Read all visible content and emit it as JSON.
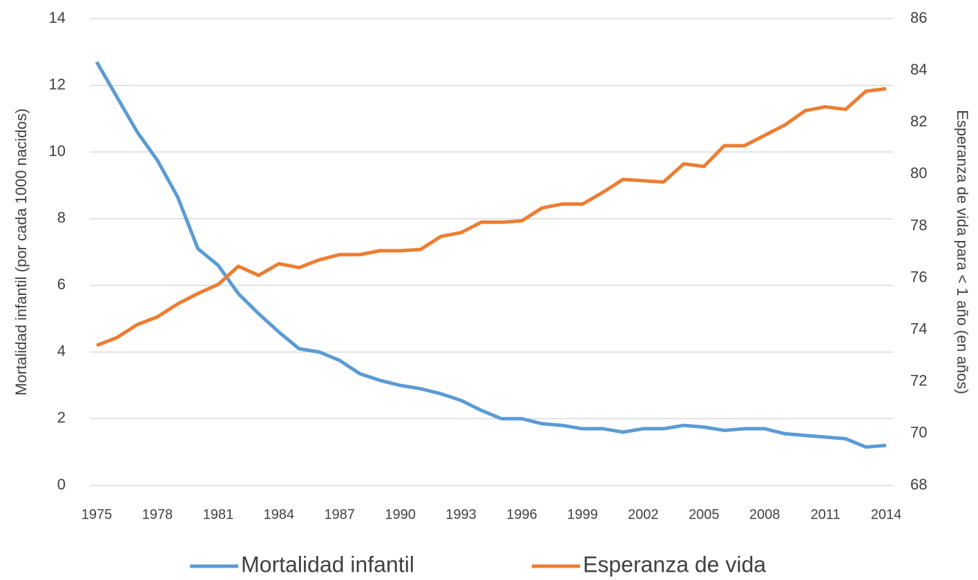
{
  "chart_data": {
    "type": "line",
    "x": [
      1975,
      1976,
      1977,
      1978,
      1979,
      1980,
      1981,
      1982,
      1983,
      1984,
      1985,
      1986,
      1987,
      1988,
      1989,
      1990,
      1991,
      1992,
      1993,
      1994,
      1995,
      1996,
      1997,
      1998,
      1999,
      2000,
      2001,
      2002,
      2003,
      2004,
      2005,
      2006,
      2007,
      2008,
      2009,
      2010,
      2011,
      2012,
      2013,
      2014
    ],
    "xlim": [
      1975,
      2014
    ],
    "xticks": [
      1975,
      1978,
      1981,
      1984,
      1987,
      1990,
      1993,
      1996,
      1999,
      2002,
      2005,
      2008,
      2011,
      2014
    ],
    "ylabel": "Mortalidad infantil (por cada 1000 nacidos)",
    "y2label": "Esperanza de vida para < 1 año (en años)",
    "ylim": [
      0,
      14
    ],
    "yticks": [
      0,
      2,
      4,
      6,
      8,
      10,
      12,
      14
    ],
    "y2lim": [
      68,
      86
    ],
    "y2ticks": [
      68,
      70,
      72,
      74,
      76,
      78,
      80,
      82,
      84,
      86
    ],
    "grid": true,
    "legend": "bottom",
    "series": [
      {
        "name": "Mortalidad infantil",
        "color": "#5b9bd5",
        "values": [
          12.7,
          11.65,
          10.6,
          9.75,
          8.65,
          7.1,
          6.6,
          5.75,
          5.15,
          4.6,
          4.1,
          4.0,
          3.75,
          3.35,
          3.15,
          3.0,
          2.9,
          2.75,
          2.55,
          2.25,
          2.0,
          2.0,
          1.85,
          1.8,
          1.7,
          1.7,
          1.6,
          1.7,
          1.7,
          1.8,
          1.75,
          1.65,
          1.7,
          1.7,
          1.55,
          1.5,
          1.45,
          1.4,
          1.15,
          1.2
        ]
      },
      {
        "name": "Esperanza de vida",
        "color": "#ed7d31",
        "axis": "y2",
        "values": [
          73.4,
          73.7,
          74.2,
          74.5,
          75.0,
          75.4,
          75.75,
          76.45,
          76.1,
          76.55,
          76.4,
          76.7,
          76.9,
          76.9,
          77.05,
          77.05,
          77.1,
          77.6,
          77.75,
          78.15,
          78.15,
          78.2,
          78.7,
          78.85,
          78.85,
          79.3,
          79.8,
          79.75,
          79.7,
          80.4,
          80.3,
          81.1,
          81.1,
          81.5,
          81.9,
          82.45,
          82.6,
          82.5,
          83.2,
          83.3
        ]
      }
    ]
  }
}
